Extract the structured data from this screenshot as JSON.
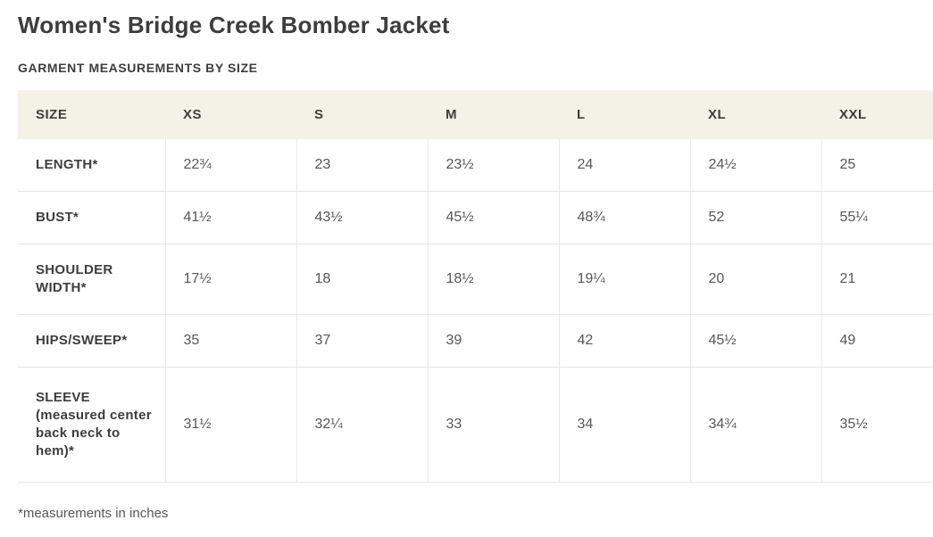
{
  "page": {
    "title": "Women's Bridge Creek Bomber Jacket",
    "subtitle": "GARMENT MEASUREMENTS BY SIZE",
    "footnote": "*measurements in inches"
  },
  "colors": {
    "header_bg": "#f4f1e7",
    "border": "#e7e6e2",
    "heading_text": "#3d3d3d",
    "value_text": "#55565a"
  },
  "chart_data": {
    "type": "table",
    "title": "Garment measurements by size (inches)",
    "columns": [
      "SIZE",
      "XS",
      "S",
      "M",
      "L",
      "XL",
      "XXL"
    ],
    "rows": [
      {
        "label": "LENGTH*",
        "values": [
          "22¾",
          "23",
          "23½",
          "24",
          "24½",
          "25"
        ]
      },
      {
        "label": "BUST*",
        "values": [
          "41½",
          "43½",
          "45½",
          "48¾",
          "52",
          "55¼"
        ]
      },
      {
        "label": "SHOULDER WIDTH*",
        "values": [
          "17½",
          "18",
          "18½",
          "19¼",
          "20",
          "21"
        ]
      },
      {
        "label": "HIPS/SWEEP*",
        "values": [
          "35",
          "37",
          "39",
          "42",
          "45½",
          "49"
        ]
      },
      {
        "label": "SLEEVE (measured center back neck to hem)*",
        "values": [
          "31½",
          "32¼",
          "33",
          "34",
          "34¾",
          "35½"
        ]
      }
    ],
    "units": "inches"
  }
}
